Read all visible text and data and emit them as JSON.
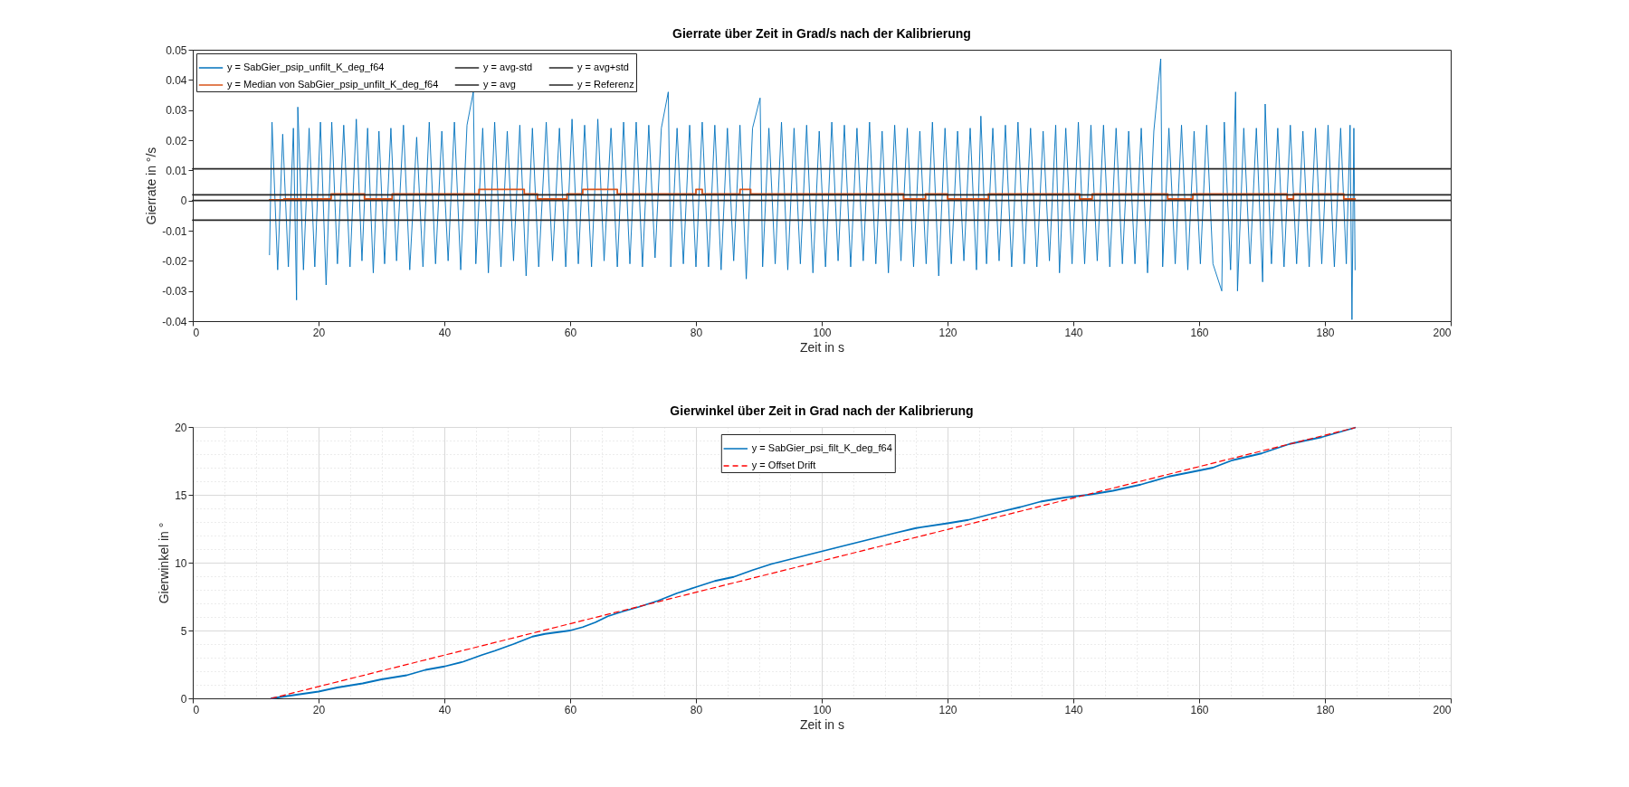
{
  "chart_data": [
    {
      "type": "line",
      "title": "Gierrate über Zeit in Grad/s nach der Kalibrierung",
      "xlabel": "Zeit in s",
      "ylabel": "Gierrate  in °/s",
      "xlim": [
        0,
        200
      ],
      "xticks": [
        0,
        20,
        40,
        60,
        80,
        100,
        120,
        140,
        160,
        180,
        200
      ],
      "ylim": [
        -0.04,
        0.05
      ],
      "yticks": [
        -0.04,
        -0.03,
        -0.02,
        -0.01,
        0,
        0.01,
        0.02,
        0.03,
        0.04,
        0.05
      ],
      "legend": "top left",
      "grid": false,
      "series": [
        {
          "name": "y = SabGier_psip_unfilt_K_deg_f64",
          "color": "#0072bd",
          "type": "line",
          "x": [
            12.2,
            12.6,
            13.5,
            14.3,
            15.2,
            16.0,
            16.5,
            16.7,
            17.6,
            18.5,
            19.4,
            20.3,
            21.2,
            22.1,
            23.0,
            24.0,
            25.0,
            26.0,
            26.9,
            27.8,
            28.7,
            29.6,
            30.5,
            31.5,
            32.4,
            33.5,
            34.5,
            35.6,
            36.6,
            37.6,
            38.6,
            39.6,
            40.6,
            41.6,
            42.6,
            43.6,
            44.6,
            45.0,
            46.1,
            47.0,
            48.0,
            49.0,
            50.0,
            51.0,
            52.0,
            53.0,
            54.0,
            55.0,
            56.2,
            57.2,
            58.3,
            59.3,
            60.3,
            61.3,
            62.3,
            63.4,
            64.4,
            65.4,
            66.5,
            67.5,
            68.5,
            69.5,
            70.5,
            71.5,
            72.5,
            73.5,
            74.5,
            75.6,
            76.0,
            77.0,
            78.0,
            79.0,
            80.0,
            81.0,
            82.0,
            83.0,
            84.0,
            85.0,
            86.0,
            87.0,
            88.0,
            89.0,
            90.2,
            90.6,
            91.6,
            92.6,
            93.6,
            94.6,
            95.6,
            96.6,
            97.6,
            98.6,
            99.6,
            100.6,
            101.6,
            102.6,
            103.6,
            104.6,
            105.6,
            106.6,
            107.6,
            108.6,
            109.6,
            110.6,
            111.6,
            112.6,
            113.6,
            114.6,
            115.6,
            116.6,
            117.6,
            118.6,
            119.6,
            120.6,
            121.6,
            122.6,
            123.6,
            124.6,
            125.3,
            126.2,
            127.2,
            128.2,
            129.2,
            130.2,
            131.2,
            132.2,
            133.2,
            134.2,
            135.2,
            136.2,
            137.2,
            137.8,
            138.8,
            139.8,
            140.8,
            141.8,
            142.8,
            143.8,
            144.8,
            145.8,
            146.8,
            147.8,
            148.8,
            149.8,
            150.8,
            151.8,
            152.8,
            153.9,
            154.2,
            155.2,
            156.2,
            157.2,
            158.2,
            159.2,
            160.2,
            161.2,
            162.2,
            163.6,
            164.0,
            165.0,
            165.8,
            166.1,
            167.1,
            168.1,
            169.1,
            170.1,
            170.5,
            171.5,
            172.5,
            173.5,
            174.5,
            175.5,
            176.5,
            177.5,
            178.5,
            179.5,
            180.5,
            181.5,
            182.5,
            183.4,
            184.0,
            184.3,
            184.6,
            184.8
          ],
          "values": [
            -0.018,
            0.026,
            -0.023,
            0.022,
            -0.022,
            0.024,
            -0.033,
            0.031,
            -0.023,
            0.024,
            -0.022,
            0.026,
            -0.028,
            0.026,
            -0.021,
            0.025,
            -0.022,
            0.027,
            -0.02,
            0.024,
            -0.024,
            0.023,
            -0.021,
            0.024,
            -0.02,
            0.025,
            -0.023,
            0.021,
            -0.022,
            0.026,
            -0.021,
            0.023,
            -0.02,
            0.026,
            -0.023,
            0.025,
            0.036,
            -0.021,
            0.024,
            -0.024,
            0.026,
            -0.022,
            0.023,
            -0.02,
            0.025,
            -0.025,
            0.024,
            -0.022,
            0.026,
            -0.02,
            0.024,
            -0.022,
            0.027,
            -0.021,
            0.025,
            -0.022,
            0.027,
            -0.02,
            0.024,
            -0.022,
            0.026,
            -0.021,
            0.026,
            -0.022,
            0.025,
            -0.019,
            0.024,
            0.036,
            -0.022,
            0.024,
            -0.021,
            0.025,
            -0.022,
            0.026,
            -0.022,
            0.025,
            -0.023,
            0.024,
            -0.02,
            0.025,
            -0.026,
            0.024,
            0.034,
            -0.022,
            0.024,
            -0.021,
            0.026,
            -0.023,
            0.024,
            -0.021,
            0.025,
            -0.024,
            0.023,
            -0.022,
            0.026,
            -0.02,
            0.025,
            -0.022,
            0.024,
            -0.02,
            0.026,
            -0.021,
            0.023,
            -0.024,
            0.025,
            -0.02,
            0.024,
            -0.022,
            0.023,
            -0.021,
            0.026,
            -0.025,
            0.024,
            -0.021,
            0.023,
            -0.02,
            0.024,
            -0.023,
            0.028,
            -0.021,
            0.024,
            -0.02,
            0.025,
            -0.022,
            0.026,
            -0.021,
            0.024,
            -0.022,
            0.023,
            -0.02,
            0.025,
            -0.024,
            0.024,
            -0.021,
            0.026,
            -0.021,
            0.025,
            -0.02,
            0.025,
            -0.022,
            0.024,
            -0.021,
            0.023,
            -0.021,
            0.024,
            -0.024,
            0.023,
            0.047,
            -0.022,
            0.024,
            -0.021,
            0.025,
            -0.023,
            0.023,
            -0.021,
            0.025,
            -0.021,
            -0.03,
            0.026,
            -0.023,
            0.036,
            -0.03,
            0.024,
            -0.021,
            0.024,
            -0.027,
            0.032,
            -0.021,
            0.024,
            -0.022,
            0.025,
            -0.021,
            0.023,
            -0.022,
            0.024,
            -0.021,
            0.025,
            -0.022,
            0.024,
            -0.021,
            0.025,
            -0.0395,
            0.024,
            -0.023
          ]
        },
        {
          "name": "y = Median von SabGier_psip_unfilt_K_deg_f64",
          "color": "#d95319",
          "type": "step",
          "x": [
            12.2,
            14.5,
            22,
            27.3,
            31.7,
            45.5,
            52.7,
            54.8,
            59.5,
            62,
            67.5,
            80,
            81,
            87,
            88.7,
            113,
            116.5,
            120,
            126.5,
            141,
            143,
            155,
            159,
            174,
            175,
            183,
            184.8
          ],
          "values": [
            0.0002,
            0.0005,
            0.0022,
            0.0005,
            0.0022,
            0.0037,
            0.0022,
            0.0005,
            0.0022,
            0.0037,
            0.0022,
            0.0037,
            0.0022,
            0.0037,
            0.0022,
            0.0005,
            0.0022,
            0.0005,
            0.0022,
            0.0005,
            0.0022,
            0.0005,
            0.0022,
            0.0005,
            0.0022,
            0.0005,
            0.0005
          ]
        },
        {
          "name": "y = avg-std",
          "color": "#262626",
          "type": "line",
          "x": [
            0,
            200
          ],
          "values": [
            -0.0065,
            -0.0065
          ]
        },
        {
          "name": "y = avg",
          "color": "#262626",
          "type": "line",
          "x": [
            0,
            200
          ],
          "values": [
            0.0019,
            0.0019
          ]
        },
        {
          "name": "y = avg+std",
          "color": "#262626",
          "type": "line",
          "x": [
            0,
            200
          ],
          "values": [
            0.0105,
            0.0105
          ]
        },
        {
          "name": "y = Referenz",
          "color": "#262626",
          "type": "line",
          "x": [
            0,
            200
          ],
          "values": [
            0,
            0
          ]
        }
      ]
    },
    {
      "type": "line",
      "title": "Gierwinkel über Zeit in Grad nach der Kalibrierung",
      "xlabel": "Zeit in s",
      "ylabel": "Gierwinkel in °",
      "xlim": [
        0,
        200
      ],
      "xticks": [
        0,
        {
          "value": 5,
          "label": null
        },
        {
          "value": 10,
          "label": null
        },
        {
          "value": 15,
          "label": null
        },
        20,
        {
          "value": 25,
          "label": null
        },
        {
          "value": 30,
          "label": null
        },
        {
          "value": 35,
          "label": null
        },
        40,
        {
          "value": 45,
          "label": null
        },
        {
          "value": 50,
          "label": null
        },
        {
          "value": 55,
          "label": null
        },
        60,
        {
          "value": 65,
          "label": null
        },
        {
          "value": 70,
          "label": null
        },
        {
          "value": 75,
          "label": null
        },
        80,
        {
          "value": 85,
          "label": null
        },
        {
          "value": 90,
          "label": null
        },
        {
          "value": 95,
          "label": null
        },
        100,
        {
          "value": 105,
          "label": null
        },
        {
          "value": 110,
          "label": null
        },
        {
          "value": 115,
          "label": null
        },
        120,
        {
          "value": 125,
          "label": null
        },
        {
          "value": 130,
          "label": null
        },
        {
          "value": 135,
          "label": null
        },
        140,
        {
          "value": 145,
          "label": null
        },
        {
          "value": 150,
          "label": null
        },
        {
          "value": 155,
          "label": null
        },
        160,
        {
          "value": 165,
          "label": null
        },
        {
          "value": 170,
          "label": null
        },
        {
          "value": 175,
          "label": null
        },
        180,
        {
          "value": 185,
          "label": null
        },
        {
          "value": 190,
          "label": null
        },
        {
          "value": 195,
          "label": null
        },
        200
      ],
      "ylim": [
        0,
        20
      ],
      "yticks": [
        0,
        {
          "value": 1,
          "label": null
        },
        {
          "value": 2,
          "label": null
        },
        {
          "value": 3,
          "label": null
        },
        {
          "value": 4,
          "label": null
        },
        5,
        {
          "value": 6,
          "label": null
        },
        {
          "value": 7,
          "label": null
        },
        {
          "value": 8,
          "label": null
        },
        {
          "value": 9,
          "label": null
        },
        10,
        {
          "value": 11,
          "label": null
        },
        {
          "value": 12,
          "label": null
        },
        {
          "value": 13,
          "label": null
        },
        {
          "value": 14,
          "label": null
        },
        15,
        {
          "value": 16,
          "label": null
        },
        {
          "value": 17,
          "label": null
        },
        {
          "value": 18,
          "label": null
        },
        {
          "value": 19,
          "label": null
        },
        20
      ],
      "legend": "top",
      "grid": true,
      "series": [
        {
          "name": "y = SabGier_psi_filt_K_deg_f64",
          "color": "#0072bd",
          "type": "line",
          "line_style": "solid",
          "x": [
            12.5,
            20,
            23,
            27,
            30,
            34,
            37,
            40,
            43,
            46,
            48,
            51,
            54,
            56,
            60,
            62,
            64,
            66,
            68,
            71,
            74,
            77,
            80,
            83,
            86,
            89,
            92,
            95,
            98,
            101,
            104,
            106.6,
            111.8,
            115,
            120,
            123.3,
            128.4,
            131.6,
            134.8,
            138.6,
            142.4,
            146.3,
            150.7,
            155.2,
            159,
            162.2,
            165.3,
            169.9,
            174.4,
            179.5,
            184.8
          ],
          "values": [
            0,
            0.5,
            0.8,
            1.1,
            1.4,
            1.7,
            2.1,
            2.35,
            2.7,
            3.2,
            3.5,
            4.0,
            4.55,
            4.75,
            5.0,
            5.25,
            5.6,
            6.05,
            6.35,
            6.75,
            7.2,
            7.75,
            8.2,
            8.65,
            8.95,
            9.45,
            9.9,
            10.25,
            10.6,
            10.95,
            11.3,
            11.6,
            12.2,
            12.55,
            12.9,
            13.15,
            13.75,
            14.1,
            14.5,
            14.8,
            15.0,
            15.3,
            15.75,
            16.35,
            16.7,
            17.0,
            17.55,
            18.05,
            18.75,
            19.25,
            19.95
          ]
        },
        {
          "name": "y = Offset Drift",
          "color": "#ff0000",
          "type": "line",
          "line_style": "dashed",
          "x": [
            12.5,
            184.8
          ],
          "values": [
            0,
            19.95
          ]
        }
      ]
    }
  ]
}
